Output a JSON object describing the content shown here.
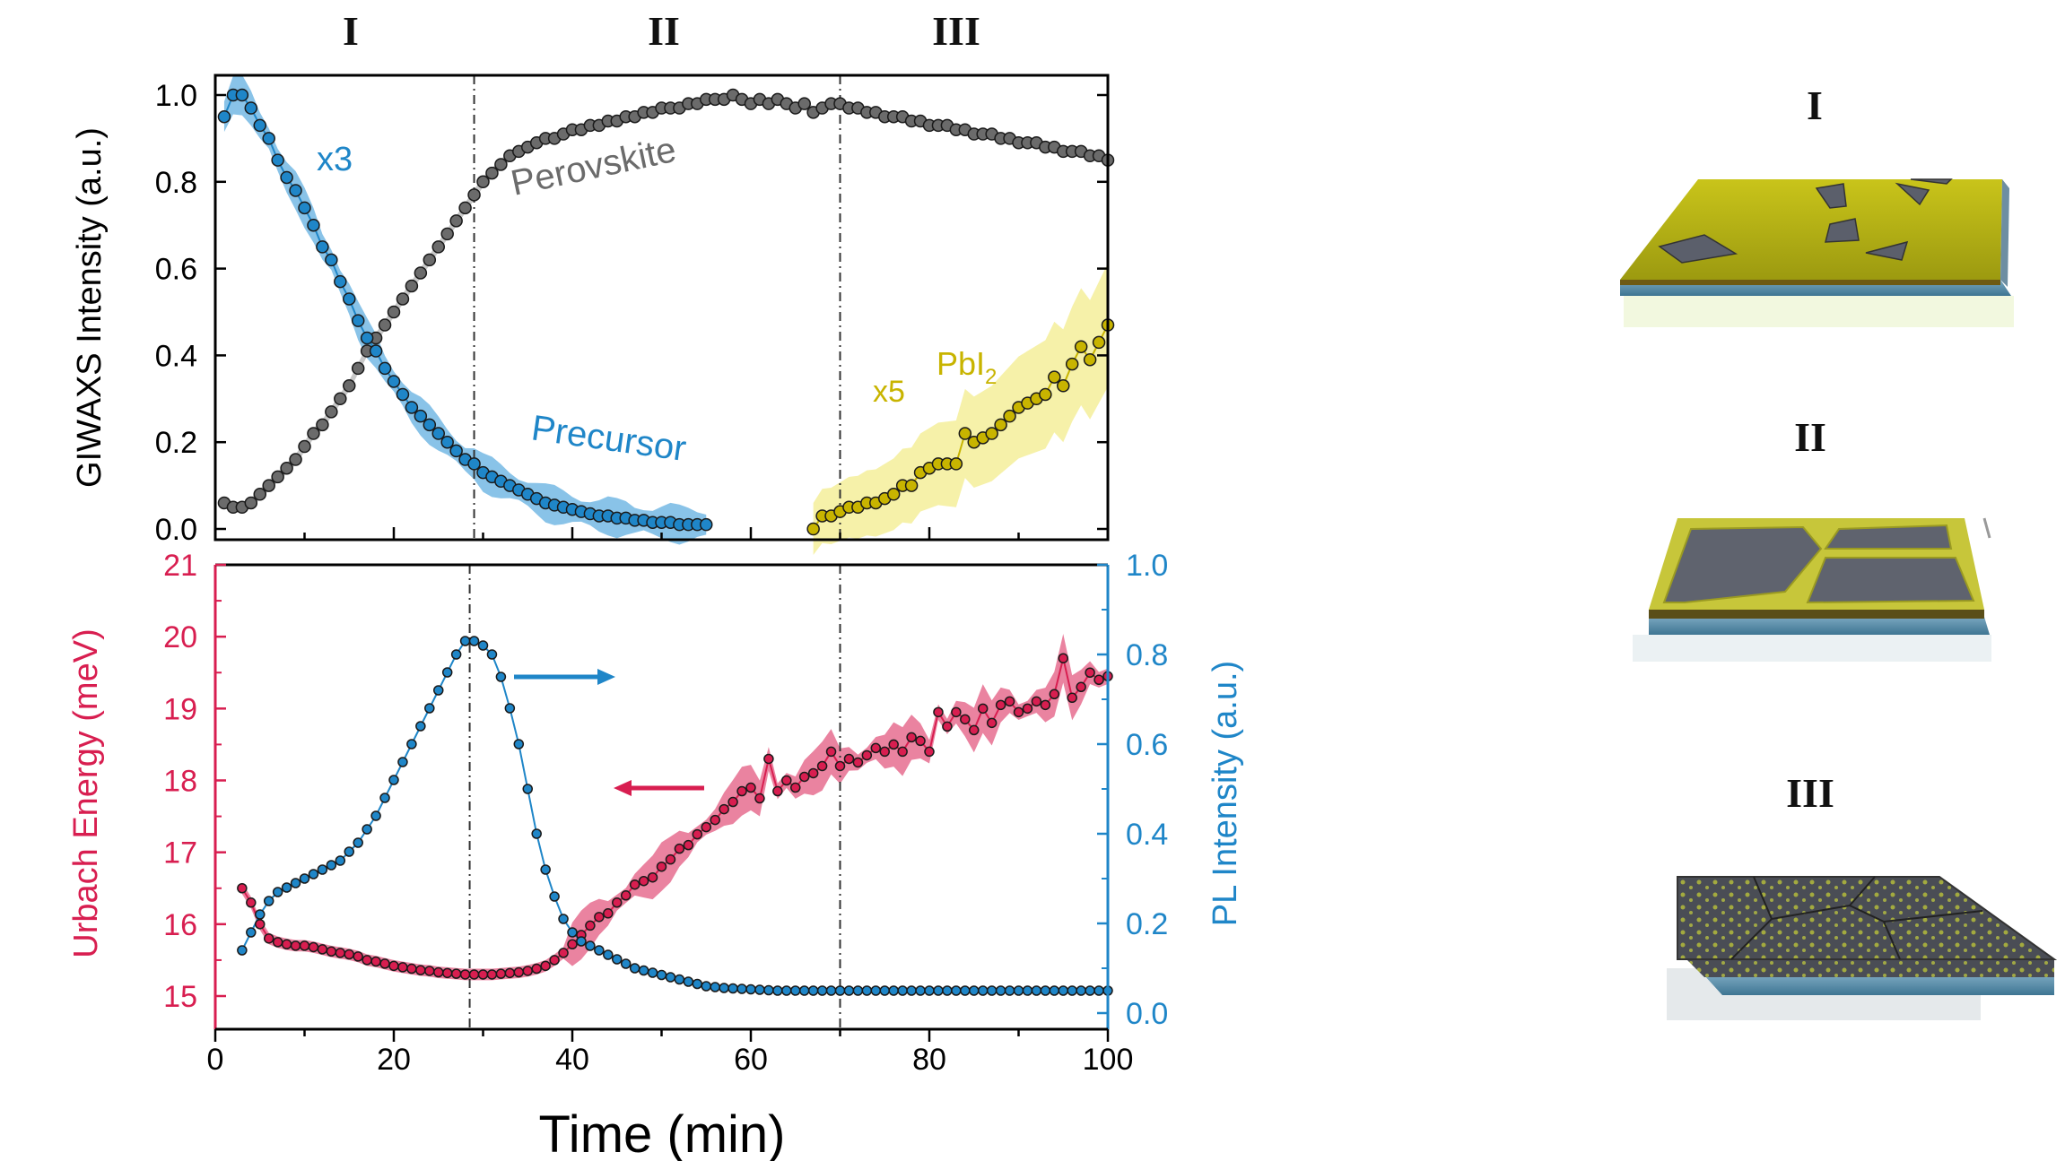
{
  "stage_labels": {
    "s1": "I",
    "s2": "II",
    "s3": "III"
  },
  "illustrations": {
    "i1": "I",
    "i2": "II",
    "i3": "III"
  },
  "colors": {
    "precursor": "#1f86c8",
    "perovskite": "#6b6b6b",
    "pbi2": "#c8b400",
    "urbach": "#d81e50",
    "pl": "#1f86c8",
    "axis": "#000000"
  },
  "chart_data": [
    {
      "type": "scatter",
      "panel": "top",
      "ylabel": "GIWAXS Intensity (a.u.)",
      "xlim": [
        0,
        100
      ],
      "ylim": [
        0,
        1.0
      ],
      "xticks": [
        "0",
        "20",
        "40",
        "60",
        "80",
        "100"
      ],
      "yticks": [
        "0.0",
        "0.2",
        "0.4",
        "0.6",
        "0.8",
        "1.0"
      ],
      "vlines": [
        29,
        70
      ],
      "annotations": {
        "precursor_scale": "x3",
        "precursor": "Precursor",
        "perovskite": "Perovskite",
        "pbi2_scale": "x5",
        "pbi2_text": "PbI",
        "pbi2_sub": "2"
      },
      "series": [
        {
          "name": "Precursor",
          "x": [
            1,
            2,
            3,
            4,
            5,
            6,
            7,
            8,
            9,
            10,
            11,
            12,
            13,
            14,
            15,
            16,
            17,
            18,
            19,
            20,
            21,
            22,
            23,
            24,
            25,
            26,
            27,
            28,
            29,
            30,
            31,
            32,
            33,
            34,
            35,
            36,
            37,
            38,
            39,
            40,
            41,
            42,
            43,
            44,
            45,
            46,
            47,
            48,
            49,
            50,
            51,
            52,
            53,
            54,
            55
          ],
          "y": [
            0.95,
            1.0,
            1.0,
            0.97,
            0.93,
            0.9,
            0.85,
            0.81,
            0.78,
            0.74,
            0.7,
            0.65,
            0.62,
            0.57,
            0.53,
            0.48,
            0.44,
            0.41,
            0.37,
            0.34,
            0.31,
            0.28,
            0.26,
            0.24,
            0.22,
            0.2,
            0.18,
            0.16,
            0.15,
            0.13,
            0.12,
            0.11,
            0.1,
            0.09,
            0.08,
            0.07,
            0.06,
            0.055,
            0.05,
            0.045,
            0.04,
            0.035,
            0.03,
            0.03,
            0.025,
            0.025,
            0.02,
            0.02,
            0.015,
            0.015,
            0.015,
            0.01,
            0.01,
            0.01,
            0.01
          ]
        },
        {
          "name": "Perovskite",
          "x": [
            1,
            2,
            3,
            4,
            5,
            6,
            7,
            8,
            9,
            10,
            11,
            12,
            13,
            14,
            15,
            16,
            17,
            18,
            19,
            20,
            21,
            22,
            23,
            24,
            25,
            26,
            27,
            28,
            29,
            30,
            31,
            32,
            33,
            34,
            35,
            36,
            37,
            38,
            39,
            40,
            41,
            42,
            43,
            44,
            45,
            46,
            47,
            48,
            49,
            50,
            51,
            52,
            53,
            54,
            55,
            56,
            57,
            58,
            59,
            60,
            61,
            62,
            63,
            64,
            65,
            66,
            67,
            68,
            69,
            70,
            71,
            72,
            73,
            74,
            75,
            76,
            77,
            78,
            79,
            80,
            81,
            82,
            83,
            84,
            85,
            86,
            87,
            88,
            89,
            90,
            91,
            92,
            93,
            94,
            95,
            96,
            97,
            98,
            99,
            100
          ],
          "y": [
            0.06,
            0.05,
            0.05,
            0.06,
            0.08,
            0.1,
            0.12,
            0.14,
            0.16,
            0.19,
            0.22,
            0.24,
            0.27,
            0.3,
            0.33,
            0.37,
            0.41,
            0.44,
            0.47,
            0.5,
            0.53,
            0.56,
            0.59,
            0.62,
            0.65,
            0.68,
            0.71,
            0.74,
            0.77,
            0.8,
            0.82,
            0.84,
            0.86,
            0.87,
            0.88,
            0.89,
            0.9,
            0.9,
            0.91,
            0.92,
            0.92,
            0.93,
            0.93,
            0.94,
            0.94,
            0.95,
            0.95,
            0.96,
            0.96,
            0.97,
            0.97,
            0.97,
            0.98,
            0.98,
            0.99,
            0.99,
            0.99,
            1.0,
            0.99,
            0.98,
            0.99,
            0.98,
            0.99,
            0.98,
            0.97,
            0.98,
            0.96,
            0.97,
            0.98,
            0.98,
            0.97,
            0.97,
            0.96,
            0.96,
            0.95,
            0.95,
            0.95,
            0.94,
            0.94,
            0.93,
            0.93,
            0.93,
            0.92,
            0.92,
            0.91,
            0.91,
            0.91,
            0.9,
            0.9,
            0.89,
            0.89,
            0.89,
            0.88,
            0.88,
            0.87,
            0.87,
            0.87,
            0.86,
            0.86,
            0.85
          ]
        },
        {
          "name": "PbI2",
          "x": [
            67,
            68,
            69,
            70,
            71,
            72,
            73,
            74,
            75,
            76,
            77,
            78,
            79,
            80,
            81,
            82,
            83,
            84,
            85,
            86,
            87,
            88,
            89,
            90,
            91,
            92,
            93,
            94,
            95,
            96,
            97,
            98,
            99,
            100
          ],
          "y": [
            0.0,
            0.03,
            0.03,
            0.04,
            0.05,
            0.05,
            0.06,
            0.06,
            0.07,
            0.08,
            0.1,
            0.1,
            0.13,
            0.14,
            0.15,
            0.15,
            0.15,
            0.22,
            0.2,
            0.21,
            0.22,
            0.24,
            0.26,
            0.28,
            0.29,
            0.3,
            0.31,
            0.35,
            0.33,
            0.38,
            0.42,
            0.39,
            0.43,
            0.47
          ]
        }
      ]
    },
    {
      "type": "scatter",
      "panel": "bottom",
      "xlabel": "Time (min)",
      "ylabel": "Urbach Energy (meV)",
      "ylabel_right": "PL Intensity (a.u.)",
      "xlim": [
        0,
        100
      ],
      "ylim": [
        14.5,
        21
      ],
      "ylim_right": [
        -0.05,
        1.0
      ],
      "xticks": [
        "0",
        "20",
        "40",
        "60",
        "80",
        "100"
      ],
      "yticks": [
        "15",
        "16",
        "17",
        "18",
        "19",
        "20",
        "21"
      ],
      "yticks_right": [
        "0.0",
        "0.2",
        "0.4",
        "0.6",
        "0.8",
        "1.0"
      ],
      "vlines": [
        28.5,
        70
      ],
      "series": [
        {
          "name": "Urbach Energy",
          "axis": "left",
          "x": [
            3,
            4,
            5,
            6,
            7,
            8,
            9,
            10,
            11,
            12,
            13,
            14,
            15,
            16,
            17,
            18,
            19,
            20,
            21,
            22,
            23,
            24,
            25,
            26,
            27,
            28,
            29,
            30,
            31,
            32,
            33,
            34,
            35,
            36,
            37,
            38,
            39,
            40,
            41,
            42,
            43,
            44,
            45,
            46,
            47,
            48,
            49,
            50,
            51,
            52,
            53,
            54,
            55,
            56,
            57,
            58,
            59,
            60,
            61,
            62,
            63,
            64,
            65,
            66,
            67,
            68,
            69,
            70,
            71,
            72,
            73,
            74,
            75,
            76,
            77,
            78,
            79,
            80,
            81,
            82,
            83,
            84,
            85,
            86,
            87,
            88,
            89,
            90,
            91,
            92,
            93,
            94,
            95,
            96,
            97,
            98,
            99,
            100
          ],
          "y": [
            16.5,
            16.3,
            16.0,
            15.8,
            15.75,
            15.72,
            15.7,
            15.7,
            15.68,
            15.65,
            15.62,
            15.6,
            15.58,
            15.55,
            15.5,
            15.48,
            15.45,
            15.42,
            15.4,
            15.38,
            15.36,
            15.35,
            15.33,
            15.32,
            15.31,
            15.3,
            15.3,
            15.3,
            15.3,
            15.31,
            15.32,
            15.33,
            15.35,
            15.38,
            15.42,
            15.5,
            15.6,
            15.72,
            15.85,
            15.98,
            16.1,
            16.15,
            16.3,
            16.4,
            16.55,
            16.6,
            16.65,
            16.8,
            16.9,
            17.05,
            17.1,
            17.25,
            17.35,
            17.45,
            17.6,
            17.7,
            17.85,
            17.9,
            17.75,
            18.3,
            17.85,
            18.0,
            17.9,
            18.05,
            18.1,
            18.2,
            18.4,
            18.2,
            18.3,
            18.25,
            18.35,
            18.45,
            18.4,
            18.5,
            18.4,
            18.6,
            18.55,
            18.4,
            18.95,
            18.75,
            18.95,
            18.85,
            18.7,
            19.0,
            18.8,
            19.05,
            19.1,
            18.95,
            19.0,
            19.1,
            19.05,
            19.2,
            19.7,
            19.15,
            19.3,
            19.5,
            19.4,
            19.45
          ]
        },
        {
          "name": "PL Intensity",
          "axis": "right",
          "x": [
            3,
            4,
            5,
            6,
            7,
            8,
            9,
            10,
            11,
            12,
            13,
            14,
            15,
            16,
            17,
            18,
            19,
            20,
            21,
            22,
            23,
            24,
            25,
            26,
            27,
            28,
            29,
            30,
            31,
            32,
            33,
            34,
            35,
            36,
            37,
            38,
            39,
            40,
            41,
            42,
            43,
            44,
            45,
            46,
            47,
            48,
            49,
            50,
            51,
            52,
            53,
            54,
            55,
            56,
            57,
            58,
            59,
            60,
            61,
            62,
            63,
            64,
            65,
            66,
            67,
            68,
            69,
            70,
            71,
            72,
            73,
            74,
            75,
            76,
            77,
            78,
            79,
            80,
            81,
            82,
            83,
            84,
            85,
            86,
            87,
            88,
            89,
            90,
            91,
            92,
            93,
            94,
            95,
            96,
            97,
            98,
            99,
            100
          ],
          "y": [
            0.14,
            0.18,
            0.22,
            0.25,
            0.27,
            0.28,
            0.29,
            0.3,
            0.31,
            0.32,
            0.33,
            0.34,
            0.36,
            0.38,
            0.41,
            0.44,
            0.48,
            0.52,
            0.56,
            0.6,
            0.64,
            0.68,
            0.72,
            0.76,
            0.8,
            0.83,
            0.83,
            0.82,
            0.8,
            0.75,
            0.68,
            0.6,
            0.5,
            0.4,
            0.32,
            0.26,
            0.21,
            0.18,
            0.16,
            0.15,
            0.14,
            0.13,
            0.12,
            0.11,
            0.1,
            0.095,
            0.09,
            0.085,
            0.08,
            0.075,
            0.07,
            0.065,
            0.06,
            0.058,
            0.056,
            0.055,
            0.054,
            0.053,
            0.052,
            0.051,
            0.05,
            0.05,
            0.05,
            0.05,
            0.05,
            0.05,
            0.05,
            0.05,
            0.05,
            0.05,
            0.05,
            0.05,
            0.05,
            0.05,
            0.05,
            0.05,
            0.05,
            0.05,
            0.05,
            0.05,
            0.05,
            0.05,
            0.05,
            0.05,
            0.05,
            0.05,
            0.05,
            0.05,
            0.05,
            0.05,
            0.05,
            0.05,
            0.05,
            0.05,
            0.05,
            0.05,
            0.05,
            0.05
          ]
        }
      ]
    }
  ]
}
